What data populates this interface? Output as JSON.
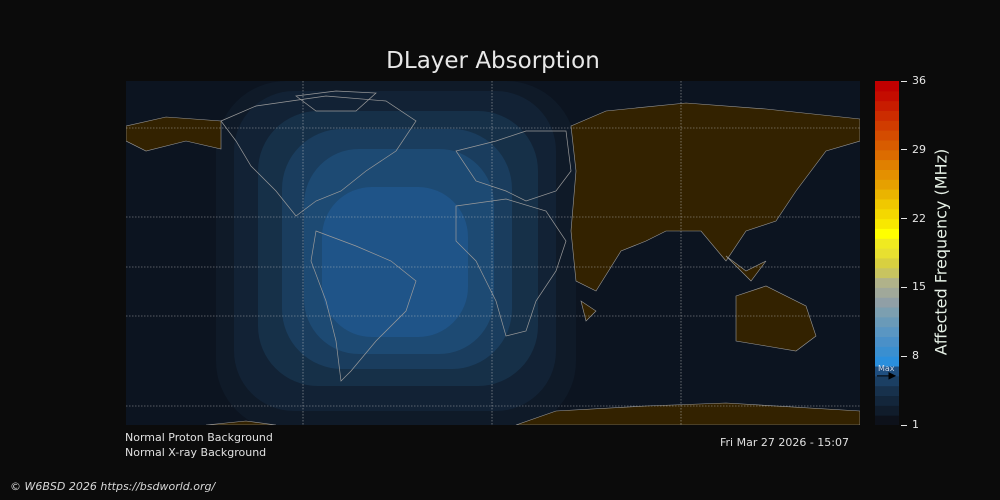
{
  "title": "DLayer Absorption",
  "colorbar": {
    "label": "Affected Frequency (MHz)",
    "min": 1,
    "max": 36,
    "ticks": [
      "36",
      "29",
      "22",
      "15",
      "8",
      "1"
    ],
    "max_marker_label": "Max",
    "max_marker_value": 6,
    "colors": [
      "#0d111a",
      "#101c2b",
      "#13263b",
      "#17314c",
      "#1b3f63",
      "#1f4f80",
      "#2a8fdd",
      "#3a8fd0",
      "#4a90c8",
      "#5a96c2",
      "#6a9ab8",
      "#7c9fb0",
      "#909fa6",
      "#a0a89a",
      "#b0b28a",
      "#c8c460",
      "#d8d040",
      "#e8e030",
      "#f0ea20",
      "#ffff00",
      "#f8e800",
      "#f4d800",
      "#f0c800",
      "#eab400",
      "#e6a000",
      "#e49000",
      "#e08000",
      "#dc6c00",
      "#d85c00",
      "#d44c00",
      "#d03c00",
      "#cc2c00",
      "#c81c00",
      "#c40c00",
      "#c00000"
    ]
  },
  "info": {
    "proton": "Normal Proton Background",
    "xray": "Normal X-ray Background",
    "timestamp": "Fri Mar 27 2026 - 15:07"
  },
  "copyright": "© W6BSD 2026 https://bsdworld.org/",
  "colors": {
    "land_night": "#332200",
    "ocean": "#0c1420",
    "coast": "#9a9a9a",
    "grid": "#c8c8c8"
  }
}
